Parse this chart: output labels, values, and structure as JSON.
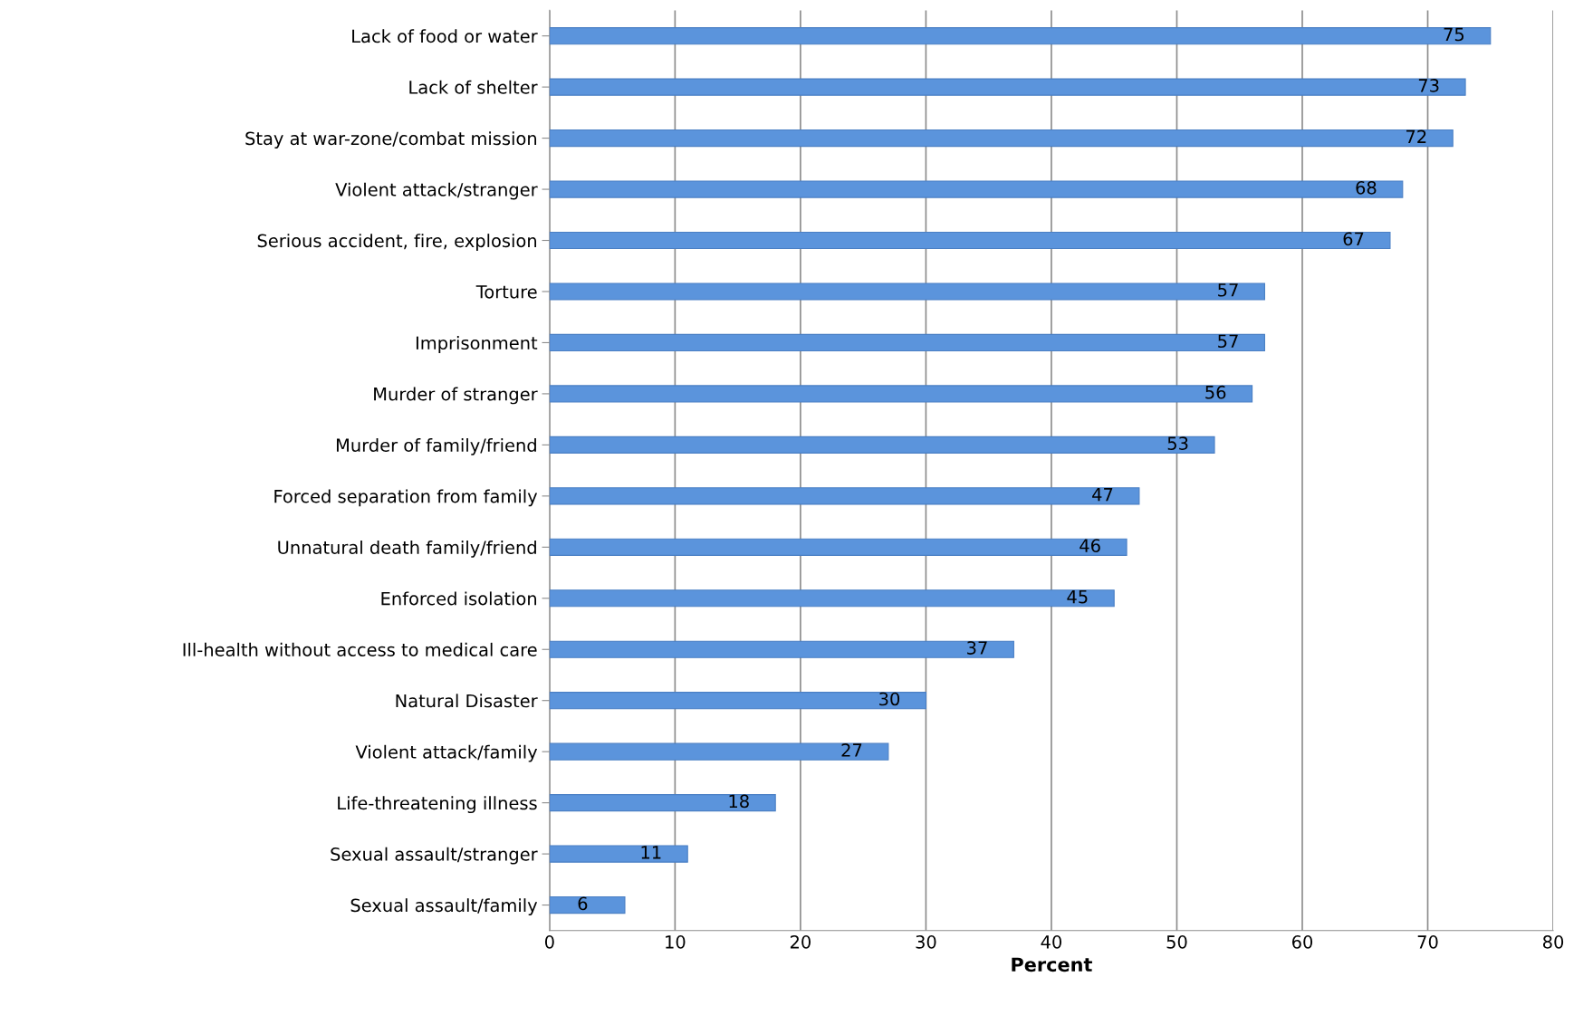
{
  "chart_data": {
    "type": "bar",
    "orientation": "horizontal",
    "xlabel": "Percent",
    "categories": [
      "Lack of food or water",
      "Lack of shelter",
      "Stay at war-zone/combat mission",
      "Violent attack/stranger",
      "Serious accident, fire, explosion",
      "Torture",
      "Imprisonment",
      "Murder of stranger",
      "Murder of family/friend",
      "Forced separation from family",
      "Unnatural death family/friend",
      "Enforced isolation",
      "Ill-health without access to medical care",
      "Natural Disaster",
      "Violent attack/family",
      "Life-threatening illness",
      "Sexual assault/stranger",
      "Sexual assault/family"
    ],
    "values": [
      75,
      73,
      72,
      68,
      67,
      57,
      57,
      56,
      53,
      47,
      46,
      45,
      37,
      30,
      27,
      18,
      11,
      6
    ],
    "color": "#5b94dc",
    "xlim": [
      0,
      80
    ],
    "xticks": [
      0,
      10,
      20,
      30,
      40,
      50,
      60,
      70,
      80
    ],
    "grid": "x",
    "data_labels": true
  }
}
